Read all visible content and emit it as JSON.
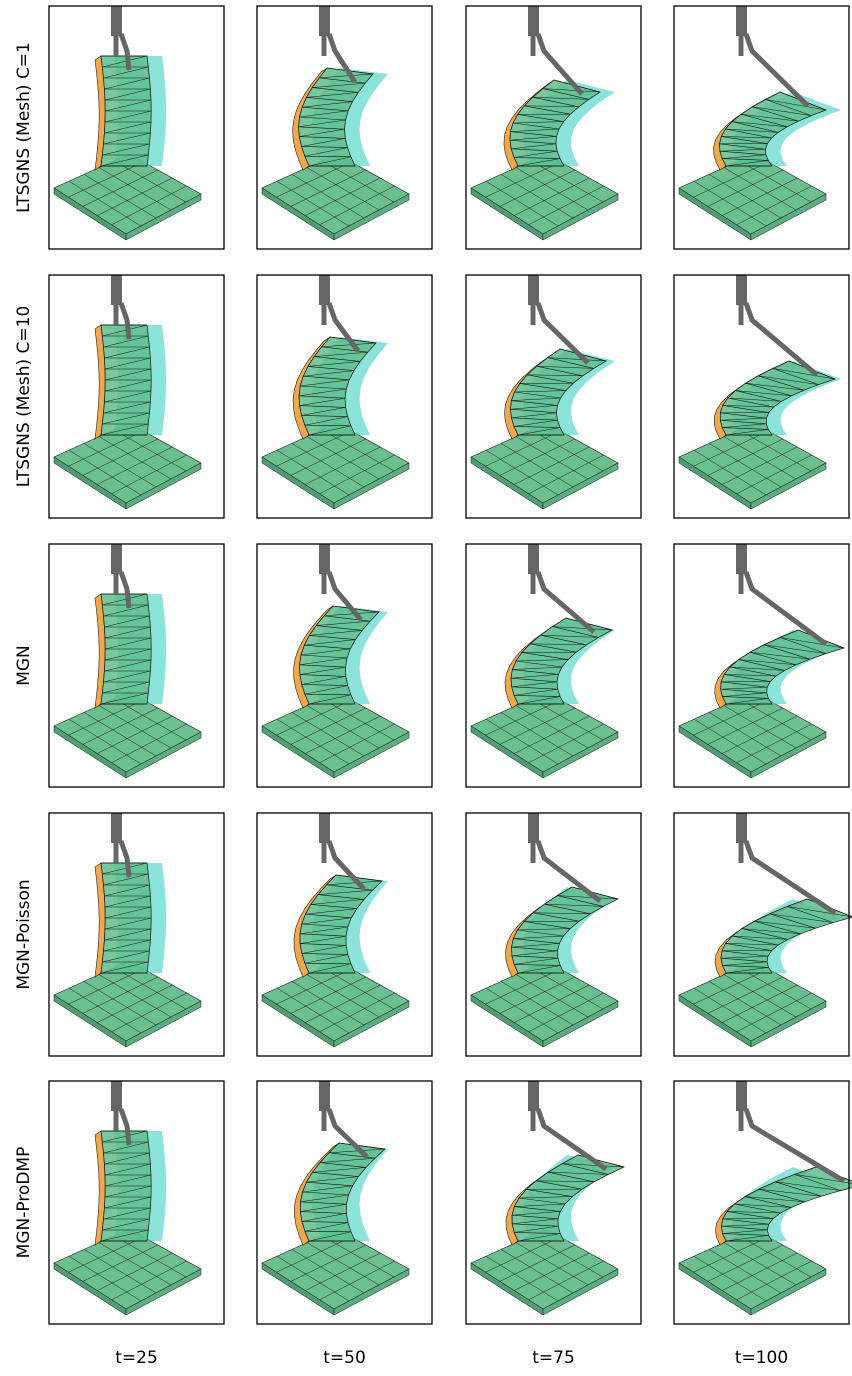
{
  "rows": [
    {
      "label": "LTSGNS (Mesh) C=1"
    },
    {
      "label": "LTSGNS (Mesh) C=10"
    },
    {
      "label": "MGN"
    },
    {
      "label": "MGN-Poisson"
    },
    {
      "label": "MGN-ProDMP"
    }
  ],
  "columns": [
    {
      "label": "t=25"
    },
    {
      "label": "t=50"
    },
    {
      "label": "t=75"
    },
    {
      "label": "t=100"
    }
  ]
}
